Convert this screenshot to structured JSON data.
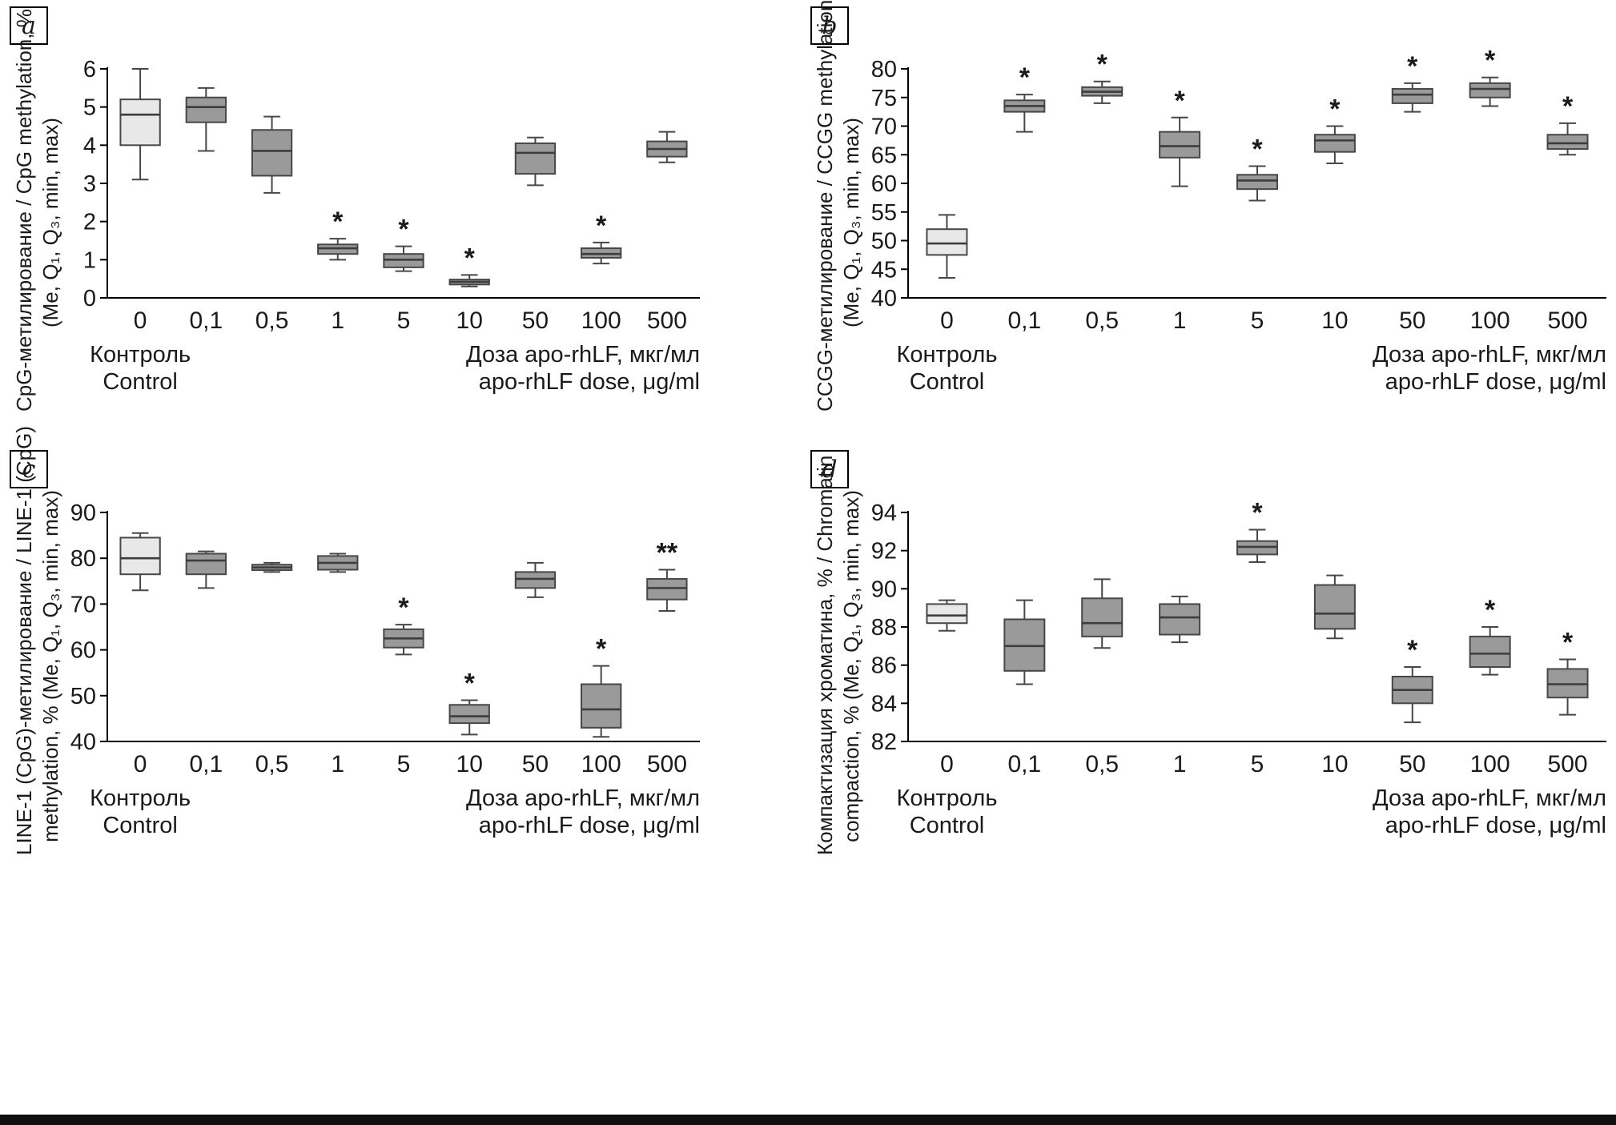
{
  "colors": {
    "box_fill": "#9a9a9a",
    "control_fill": "#e8e8e8",
    "box_stroke": "#474747",
    "median_stroke": "#3d3d3d",
    "axis": "#000000",
    "text": "#1a1a1a"
  },
  "chart_data": [
    {
      "type": "boxplot",
      "panel_letter": "a",
      "ylabel_lines": [
        "CpG-метилирование / CpG methylation, %",
        "(Me, Q₁, Q₃, min, max)"
      ],
      "ylim": [
        0,
        6
      ],
      "ytick_step": 1,
      "categories": [
        "0",
        "0,1",
        "0,5",
        "1",
        "5",
        "10",
        "50",
        "100",
        "500"
      ],
      "x_control_label_lines": [
        "Контроль",
        "Control"
      ],
      "x_dose_label_lines": [
        "Доза apo-rhLF, мкг/мл",
        "apo-rhLF dose, μg/ml"
      ],
      "boxes": [
        {
          "category": "0",
          "control": true,
          "min": 3.1,
          "q1": 4.0,
          "median": 4.8,
          "q3": 5.2,
          "max": 6.0,
          "significance": ""
        },
        {
          "category": "0,1",
          "control": false,
          "min": 3.85,
          "q1": 4.6,
          "median": 5.0,
          "q3": 5.25,
          "max": 5.5,
          "significance": ""
        },
        {
          "category": "0,5",
          "control": false,
          "min": 2.75,
          "q1": 3.2,
          "median": 3.85,
          "q3": 4.4,
          "max": 4.75,
          "significance": ""
        },
        {
          "category": "1",
          "control": false,
          "min": 1.0,
          "q1": 1.15,
          "median": 1.3,
          "q3": 1.4,
          "max": 1.55,
          "significance": "*"
        },
        {
          "category": "5",
          "control": false,
          "min": 0.7,
          "q1": 0.8,
          "median": 1.0,
          "q3": 1.15,
          "max": 1.35,
          "significance": "*"
        },
        {
          "category": "10",
          "control": false,
          "min": 0.3,
          "q1": 0.35,
          "median": 0.42,
          "q3": 0.48,
          "max": 0.6,
          "significance": "*"
        },
        {
          "category": "50",
          "control": false,
          "min": 2.95,
          "q1": 3.25,
          "median": 3.8,
          "q3": 4.05,
          "max": 4.2,
          "significance": ""
        },
        {
          "category": "100",
          "control": false,
          "min": 0.9,
          "q1": 1.05,
          "median": 1.15,
          "q3": 1.3,
          "max": 1.45,
          "significance": "*"
        },
        {
          "category": "500",
          "control": false,
          "min": 3.55,
          "q1": 3.7,
          "median": 3.9,
          "q3": 4.1,
          "max": 4.35,
          "significance": ""
        }
      ]
    },
    {
      "type": "boxplot",
      "panel_letter": "b",
      "ylabel_lines": [
        "CCGG-метилирование / CCGG methylation, %",
        "(Me, Q₁, Q₃, min, max)"
      ],
      "ylim": [
        40,
        80
      ],
      "ytick_step": 5,
      "categories": [
        "0",
        "0,1",
        "0,5",
        "1",
        "5",
        "10",
        "50",
        "100",
        "500"
      ],
      "x_control_label_lines": [
        "Контроль",
        "Control"
      ],
      "x_dose_label_lines": [
        "Доза apo-rhLF, мкг/мл",
        "apo-rhLF dose, μg/ml"
      ],
      "boxes": [
        {
          "category": "0",
          "control": true,
          "min": 43.5,
          "q1": 47.5,
          "median": 49.5,
          "q3": 52.0,
          "max": 54.5,
          "significance": ""
        },
        {
          "category": "0,1",
          "control": false,
          "min": 69.0,
          "q1": 72.5,
          "median": 73.5,
          "q3": 74.5,
          "max": 75.5,
          "significance": "*"
        },
        {
          "category": "0,5",
          "control": false,
          "min": 74.0,
          "q1": 75.3,
          "median": 76.0,
          "q3": 76.8,
          "max": 77.8,
          "significance": "*"
        },
        {
          "category": "1",
          "control": false,
          "min": 59.5,
          "q1": 64.5,
          "median": 66.5,
          "q3": 69.0,
          "max": 71.5,
          "significance": "*"
        },
        {
          "category": "5",
          "control": false,
          "min": 57.0,
          "q1": 59.0,
          "median": 60.5,
          "q3": 61.5,
          "max": 63.0,
          "significance": "*"
        },
        {
          "category": "10",
          "control": false,
          "min": 63.5,
          "q1": 65.5,
          "median": 67.5,
          "q3": 68.5,
          "max": 70.0,
          "significance": "*"
        },
        {
          "category": "50",
          "control": false,
          "min": 72.5,
          "q1": 74.0,
          "median": 75.5,
          "q3": 76.5,
          "max": 77.5,
          "significance": "*"
        },
        {
          "category": "100",
          "control": false,
          "min": 73.5,
          "q1": 75.0,
          "median": 76.5,
          "q3": 77.5,
          "max": 78.5,
          "significance": "*"
        },
        {
          "category": "500",
          "control": false,
          "min": 65.0,
          "q1": 66.0,
          "median": 67.0,
          "q3": 68.5,
          "max": 70.5,
          "significance": "*"
        }
      ]
    },
    {
      "type": "boxplot",
      "panel_letter": "c",
      "ylabel_lines": [
        "LINE-1 (CpG)-метилирование / LINE-1 (CpG)",
        "methylation, % (Me, Q₁, Q₃, min, max)"
      ],
      "ylim": [
        40,
        90
      ],
      "ytick_step": 10,
      "categories": [
        "0",
        "0,1",
        "0,5",
        "1",
        "5",
        "10",
        "50",
        "100",
        "500"
      ],
      "x_control_label_lines": [
        "Контроль",
        "Control"
      ],
      "x_dose_label_lines": [
        "Доза apo-rhLF, мкг/мл",
        "apo-rhLF dose, μg/ml"
      ],
      "boxes": [
        {
          "category": "0",
          "control": true,
          "min": 73.0,
          "q1": 76.5,
          "median": 80.0,
          "q3": 84.5,
          "max": 85.5,
          "significance": ""
        },
        {
          "category": "0,1",
          "control": false,
          "min": 73.5,
          "q1": 76.5,
          "median": 79.5,
          "q3": 81.0,
          "max": 81.5,
          "significance": ""
        },
        {
          "category": "0,5",
          "control": false,
          "min": 77.0,
          "q1": 77.4,
          "median": 78.0,
          "q3": 78.6,
          "max": 79.0,
          "significance": ""
        },
        {
          "category": "1",
          "control": false,
          "min": 77.0,
          "q1": 77.5,
          "median": 79.0,
          "q3": 80.5,
          "max": 81.0,
          "significance": ""
        },
        {
          "category": "5",
          "control": false,
          "min": 59.0,
          "q1": 60.5,
          "median": 62.5,
          "q3": 64.5,
          "max": 65.5,
          "significance": "*"
        },
        {
          "category": "10",
          "control": false,
          "min": 41.5,
          "q1": 44.0,
          "median": 45.5,
          "q3": 48.0,
          "max": 49.0,
          "significance": "*"
        },
        {
          "category": "50",
          "control": false,
          "min": 71.5,
          "q1": 73.5,
          "median": 75.5,
          "q3": 77.0,
          "max": 79.0,
          "significance": ""
        },
        {
          "category": "100",
          "control": false,
          "min": 41.0,
          "q1": 43.0,
          "median": 47.0,
          "q3": 52.5,
          "max": 56.5,
          "significance": "*"
        },
        {
          "category": "500",
          "control": false,
          "min": 68.5,
          "q1": 71.0,
          "median": 73.5,
          "q3": 75.5,
          "max": 77.5,
          "significance": "**"
        }
      ]
    },
    {
      "type": "boxplot",
      "panel_letter": "d",
      "ylabel_lines": [
        "Компактизация хроматина, % / Chromatin",
        "compaction, % (Me, Q₁, Q₃, min, max)"
      ],
      "ylim": [
        82,
        94
      ],
      "ytick_step": 2,
      "categories": [
        "0",
        "0,1",
        "0,5",
        "1",
        "5",
        "10",
        "50",
        "100",
        "500"
      ],
      "x_control_label_lines": [
        "Контроль",
        "Control"
      ],
      "x_dose_label_lines": [
        "Доза apo-rhLF, мкг/мл",
        "apo-rhLF dose, μg/ml"
      ],
      "boxes": [
        {
          "category": "0",
          "control": true,
          "min": 87.8,
          "q1": 88.2,
          "median": 88.6,
          "q3": 89.2,
          "max": 89.4,
          "significance": ""
        },
        {
          "category": "0,1",
          "control": false,
          "min": 85.0,
          "q1": 85.7,
          "median": 87.0,
          "q3": 88.4,
          "max": 89.4,
          "significance": ""
        },
        {
          "category": "0,5",
          "control": false,
          "min": 86.9,
          "q1": 87.5,
          "median": 88.2,
          "q3": 89.5,
          "max": 90.5,
          "significance": ""
        },
        {
          "category": "1",
          "control": false,
          "min": 87.2,
          "q1": 87.6,
          "median": 88.5,
          "q3": 89.2,
          "max": 89.6,
          "significance": ""
        },
        {
          "category": "5",
          "control": false,
          "min": 91.4,
          "q1": 91.8,
          "median": 92.2,
          "q3": 92.5,
          "max": 93.1,
          "significance": "*"
        },
        {
          "category": "10",
          "control": false,
          "min": 87.4,
          "q1": 87.9,
          "median": 88.7,
          "q3": 90.2,
          "max": 90.7,
          "significance": ""
        },
        {
          "category": "50",
          "control": false,
          "min": 83.0,
          "q1": 84.0,
          "median": 84.7,
          "q3": 85.4,
          "max": 85.9,
          "significance": "*"
        },
        {
          "category": "100",
          "control": false,
          "min": 85.5,
          "q1": 85.9,
          "median": 86.6,
          "q3": 87.5,
          "max": 88.0,
          "significance": "*"
        },
        {
          "category": "500",
          "control": false,
          "min": 83.4,
          "q1": 84.3,
          "median": 85.0,
          "q3": 85.8,
          "max": 86.3,
          "significance": "*"
        }
      ]
    }
  ]
}
